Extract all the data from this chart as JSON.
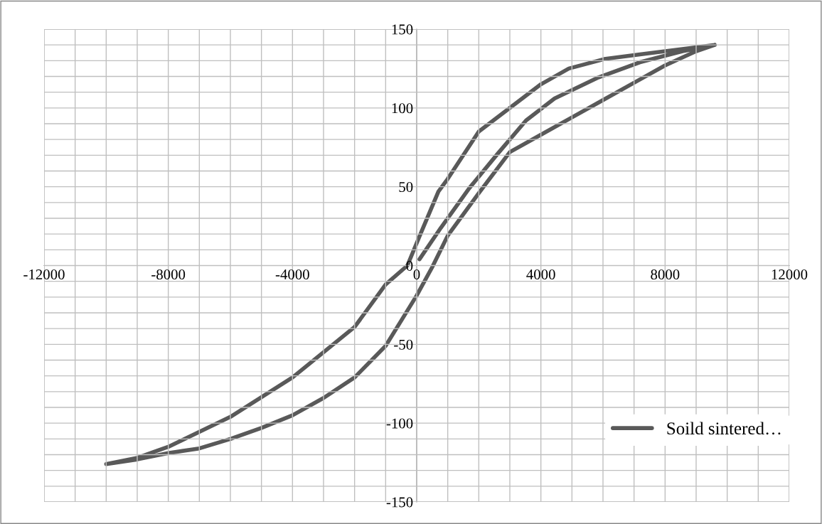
{
  "chart_data": {
    "type": "line",
    "series": [
      {
        "name": "Soild sintered…",
        "color": "#595959",
        "x": [
          90,
          780,
          1690,
          2610,
          3520,
          4440,
          5810,
          7190,
          8560,
          9600,
          7190,
          6040,
          4900,
          4000,
          3000,
          2000,
          1000,
          700,
          100,
          -300,
          -1000,
          -2000,
          -4000,
          -6000,
          -8000,
          -9000,
          -10000,
          -9000,
          -8000,
          -7000,
          -6000,
          -5000,
          -4000,
          -3000,
          -2000,
          -1000,
          -500,
          0,
          500,
          1000,
          2000,
          3000,
          4000,
          5000,
          6000,
          7000,
          8000,
          9000,
          9600
        ],
        "values": [
          4,
          24,
          49,
          71,
          92,
          106,
          119,
          129,
          136,
          140,
          134,
          131,
          125,
          115,
          100,
          85,
          55,
          47,
          19,
          0,
          -12,
          -39,
          -71,
          -96,
          -115,
          -122,
          -126,
          -123,
          -119,
          -116,
          -110,
          -103,
          -95,
          -84,
          -71,
          -51,
          -35,
          -19,
          -1,
          19,
          46,
          72,
          83,
          94,
          105,
          116,
          127,
          136,
          140
        ]
      }
    ],
    "xlim": [
      -12000,
      12000
    ],
    "xticks": [
      -12000,
      {
        "value": -11000,
        "label": null
      },
      {
        "value": -10000,
        "label": null
      },
      {
        "value": -9000,
        "label": null
      },
      -8000,
      {
        "value": -7000,
        "label": null
      },
      {
        "value": -6000,
        "label": null
      },
      {
        "value": -5000,
        "label": null
      },
      -4000,
      {
        "value": -3000,
        "label": null
      },
      {
        "value": -2000,
        "label": null
      },
      {
        "value": -1000,
        "label": null
      },
      0,
      {
        "value": 1000,
        "label": null
      },
      {
        "value": 2000,
        "label": null
      },
      {
        "value": 3000,
        "label": null
      },
      4000,
      {
        "value": 5000,
        "label": null
      },
      {
        "value": 6000,
        "label": null
      },
      {
        "value": 7000,
        "label": null
      },
      8000,
      {
        "value": 9000,
        "label": null
      },
      {
        "value": 10000,
        "label": null
      },
      {
        "value": 11000,
        "label": null
      },
      12000
    ],
    "ylim": [
      -150,
      150
    ],
    "yticks": [
      -150,
      {
        "value": -140,
        "label": null
      },
      {
        "value": -130,
        "label": null
      },
      {
        "value": -120,
        "label": null
      },
      {
        "value": -110,
        "label": null
      },
      -100,
      {
        "value": -90,
        "label": null
      },
      {
        "value": -80,
        "label": null
      },
      {
        "value": -70,
        "label": null
      },
      {
        "value": -60,
        "label": null
      },
      -50,
      {
        "value": -40,
        "label": null
      },
      {
        "value": -30,
        "label": null
      },
      {
        "value": -20,
        "label": null
      },
      {
        "value": -10,
        "label": null
      },
      0,
      {
        "value": 10,
        "label": null
      },
      {
        "value": 20,
        "label": null
      },
      {
        "value": 30,
        "label": null
      },
      {
        "value": 40,
        "label": null
      },
      50,
      {
        "value": 60,
        "label": null
      },
      {
        "value": 70,
        "label": null
      },
      {
        "value": 80,
        "label": null
      },
      {
        "value": 90,
        "label": null
      },
      100,
      {
        "value": 110,
        "label": null
      },
      {
        "value": 120,
        "label": null
      },
      {
        "value": 130,
        "label": null
      },
      {
        "value": 140,
        "label": null
      },
      150
    ],
    "grid": true,
    "legend": "bottom right",
    "marker": "none",
    "line_style": "solid"
  }
}
